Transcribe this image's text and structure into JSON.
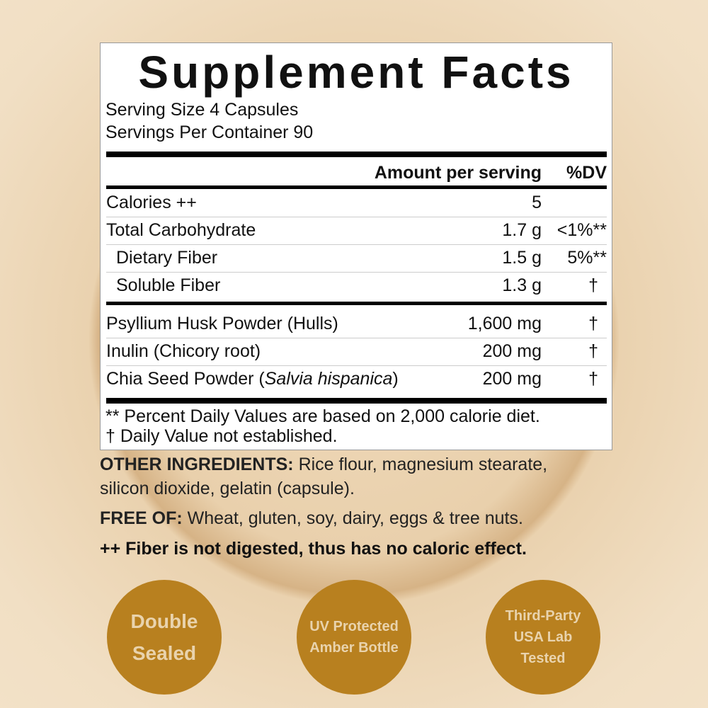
{
  "panel": {
    "title": "Supplement Facts",
    "serving_size": "Serving Size 4 Capsules",
    "servings_per_container": "Servings Per Container 90",
    "header": {
      "amount": "Amount per serving",
      "dv": "%DV"
    },
    "nutrients": [
      {
        "name": "Calories ++",
        "amount": "5",
        "dv": ""
      },
      {
        "name": "Total Carbohydrate",
        "amount": "1.7 g",
        "dv": "<1%**"
      },
      {
        "name": "Dietary Fiber",
        "amount": "1.5 g",
        "dv": "5%**"
      },
      {
        "name": "Soluble Fiber",
        "amount": "1.3 g",
        "dv": "†"
      }
    ],
    "ingredients": [
      {
        "name": "Psyllium Husk Powder (Hulls)",
        "amount": "1,600 mg",
        "dv": "†"
      },
      {
        "name": "Inulin (Chicory root)",
        "amount": "200 mg",
        "dv": "†"
      },
      {
        "name_prefix": "Chia Seed Powder (",
        "name_italic": "Salvia hispanica",
        "name_suffix": ")",
        "amount": "200 mg",
        "dv": "†"
      }
    ],
    "footnotes": [
      "** Percent Daily Values are based on 2,000 calorie diet.",
      "† Daily Value not established."
    ]
  },
  "other_ingredients": {
    "label": "OTHER INGREDIENTS:",
    "text1": " Rice flour, magnesium stearate,",
    "text2": "silicon dioxide, gelatin (capsule)."
  },
  "free_of": {
    "label": "FREE OF:",
    "text": " Wheat, gluten, soy, dairy, eggs & tree nuts."
  },
  "fiber_note": "++ Fiber is not digested, thus has no caloric effect.",
  "badges": [
    {
      "lines": [
        "Double",
        "Sealed"
      ]
    },
    {
      "lines": [
        "UV Protected",
        "Amber Bottle"
      ]
    },
    {
      "lines": [
        "Third-Party",
        "USA Lab",
        "Tested"
      ]
    }
  ],
  "colors": {
    "badge": "#b8801f",
    "badge_text": "#e9d3ad"
  }
}
